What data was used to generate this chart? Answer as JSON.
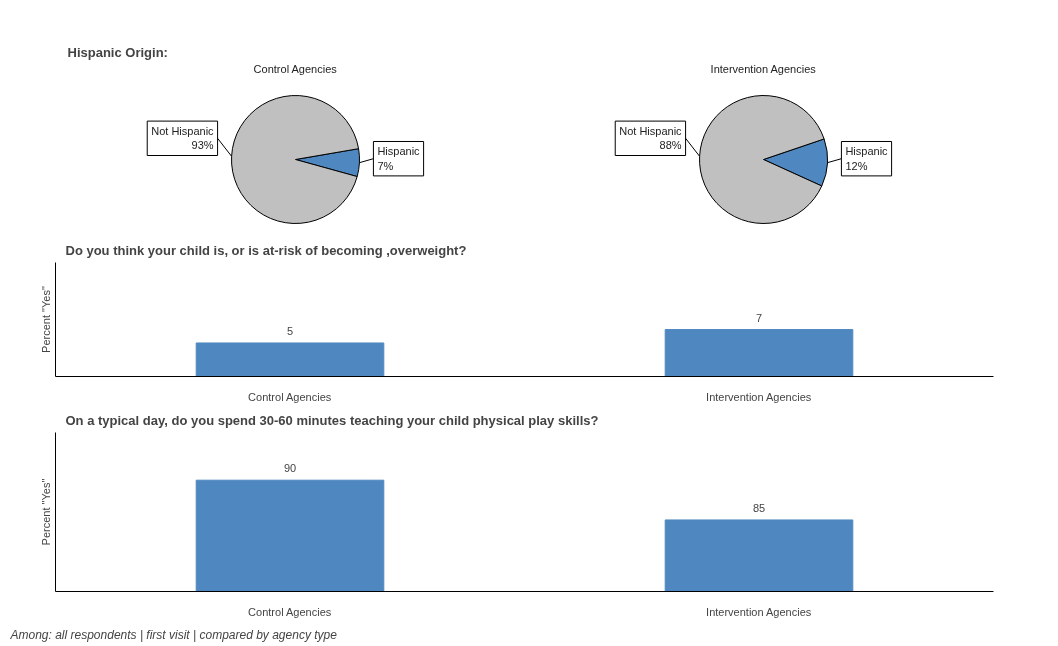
{
  "chart_data": [
    {
      "type": "pie",
      "title": "Control Agencies",
      "annotations": [
        "Hispanic Origin:"
      ],
      "categories": [
        "Hispanic",
        "Not Hispanic"
      ],
      "values": [
        7,
        93
      ],
      "value_labels": [
        "7%",
        "93%"
      ],
      "colors": [
        "#4f88c0",
        "#c0c0c0"
      ]
    },
    {
      "type": "pie",
      "title": "Intervention Agencies",
      "categories": [
        "Hispanic",
        "Not Hispanic"
      ],
      "values": [
        12,
        88
      ],
      "value_labels": [
        "12%",
        "88%"
      ],
      "colors": [
        "#4f88c0",
        "#c0c0c0"
      ]
    },
    {
      "type": "bar",
      "title": "Do you think your child is, or is at-risk of becoming ,overweight?",
      "ylabel": "Percent \"Yes\"",
      "categories": [
        "Control Agencies",
        "Intervention Agencies"
      ],
      "values": [
        5,
        7
      ],
      "color": "#4f88c0",
      "ylim": [
        0,
        17
      ],
      "tick_labels": "x",
      "data_labels": true
    },
    {
      "type": "bar",
      "title": "On a typical day, do you spend 30-60 minutes teaching your child physical play skills?",
      "ylabel": "Percent \"Yes\"",
      "categories": [
        "Control Agencies",
        "Intervention Agencies"
      ],
      "values": [
        90,
        85
      ],
      "color": "#4f88c0",
      "ylim": [
        76,
        96
      ],
      "tick_labels": "x",
      "data_labels": true,
      "annotations": [
        "Among: all respondents | first visit | compared by agency type"
      ]
    }
  ]
}
